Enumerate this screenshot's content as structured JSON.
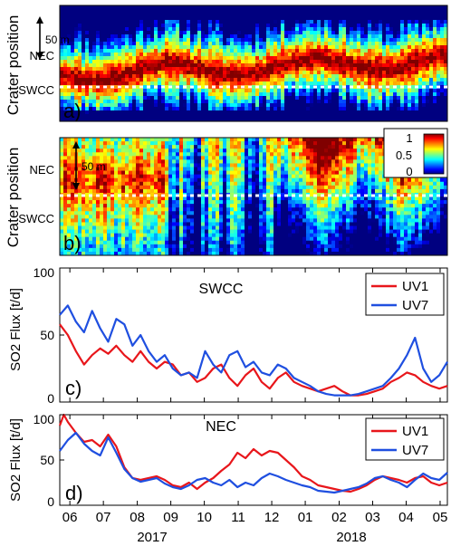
{
  "chart_data": [
    {
      "panel": "a)",
      "type": "heatmap",
      "ylabel": "Crater position",
      "ytick_labels": [
        "NEC",
        "SWCC"
      ],
      "scale_annotation": "50 m",
      "colorbar": {
        "ticks": [
          "1",
          "0.5",
          "0"
        ],
        "range": [
          0,
          1
        ]
      }
    },
    {
      "panel": "b)",
      "type": "heatmap",
      "ylabel": "Crater position",
      "ytick_labels": [
        "NEC",
        "SWCC"
      ],
      "scale_annotation": "50 m"
    },
    {
      "panel": "c)",
      "type": "line",
      "title": "SWCC",
      "ylabel": "SO2 Flux [t/d]",
      "ylim": [
        0,
        100
      ],
      "yticks": [
        "0",
        "50",
        "100"
      ],
      "legend": "top-right",
      "series": [
        {
          "name": "UV1",
          "color": "#e8161b",
          "values": [
            [
              0,
              58
            ],
            [
              2,
              50
            ],
            [
              4,
              38
            ],
            [
              6,
              28
            ],
            [
              8,
              35
            ],
            [
              10,
              40
            ],
            [
              12,
              36
            ],
            [
              14,
              42
            ],
            [
              16,
              35
            ],
            [
              18,
              30
            ],
            [
              20,
              38
            ],
            [
              22,
              30
            ],
            [
              24,
              25
            ],
            [
              26,
              30
            ],
            [
              28,
              28
            ],
            [
              30,
              20
            ],
            [
              32,
              22
            ],
            [
              34,
              15
            ],
            [
              36,
              18
            ],
            [
              38,
              25
            ],
            [
              40,
              28
            ],
            [
              42,
              18
            ],
            [
              44,
              12
            ],
            [
              46,
              20
            ],
            [
              48,
              25
            ],
            [
              50,
              15
            ],
            [
              52,
              10
            ],
            [
              54,
              18
            ],
            [
              56,
              22
            ],
            [
              58,
              15
            ],
            [
              60,
              12
            ],
            [
              62,
              10
            ],
            [
              64,
              8
            ],
            [
              66,
              10
            ],
            [
              68,
              12
            ],
            [
              70,
              8
            ],
            [
              72,
              5
            ],
            [
              74,
              5
            ],
            [
              76,
              6
            ],
            [
              78,
              8
            ],
            [
              80,
              10
            ],
            [
              82,
              15
            ],
            [
              84,
              18
            ],
            [
              86,
              22
            ],
            [
              88,
              20
            ],
            [
              90,
              15
            ],
            [
              92,
              12
            ],
            [
              94,
              10
            ],
            [
              96,
              12
            ]
          ]
        },
        {
          "name": "UV7",
          "color": "#1f4fe0",
          "values": [
            [
              0,
              65
            ],
            [
              2,
              72
            ],
            [
              4,
              60
            ],
            [
              6,
              52
            ],
            [
              8,
              68
            ],
            [
              10,
              55
            ],
            [
              12,
              45
            ],
            [
              14,
              62
            ],
            [
              16,
              58
            ],
            [
              18,
              42
            ],
            [
              20,
              50
            ],
            [
              22,
              38
            ],
            [
              24,
              30
            ],
            [
              26,
              35
            ],
            [
              28,
              25
            ],
            [
              30,
              20
            ],
            [
              32,
              22
            ],
            [
              34,
              18
            ],
            [
              36,
              38
            ],
            [
              38,
              28
            ],
            [
              40,
              22
            ],
            [
              42,
              35
            ],
            [
              44,
              38
            ],
            [
              46,
              26
            ],
            [
              48,
              30
            ],
            [
              50,
              22
            ],
            [
              52,
              20
            ],
            [
              54,
              28
            ],
            [
              56,
              25
            ],
            [
              58,
              18
            ],
            [
              60,
              15
            ],
            [
              62,
              12
            ],
            [
              64,
              8
            ],
            [
              66,
              6
            ],
            [
              68,
              5
            ],
            [
              70,
              5
            ],
            [
              72,
              5
            ],
            [
              74,
              6
            ],
            [
              76,
              8
            ],
            [
              78,
              10
            ],
            [
              80,
              12
            ],
            [
              82,
              18
            ],
            [
              84,
              25
            ],
            [
              86,
              35
            ],
            [
              88,
              48
            ],
            [
              90,
              25
            ],
            [
              92,
              15
            ],
            [
              94,
              20
            ],
            [
              96,
              30
            ]
          ]
        }
      ]
    },
    {
      "panel": "d)",
      "type": "line",
      "title": "NEC",
      "ylabel": "SO2 Flux [t/d]",
      "ylim": [
        0,
        100
      ],
      "yticks": [
        "0",
        "50",
        "100"
      ],
      "legend": "top-right",
      "xtick_labels": [
        "06",
        "07",
        "08",
        "09",
        "10",
        "11",
        "12",
        "01",
        "02",
        "03",
        "04",
        "05"
      ],
      "year_labels": [
        "2017",
        "2018"
      ],
      "series": [
        {
          "name": "UV1",
          "color": "#e8161b",
          "values": [
            [
              0,
              88
            ],
            [
              1,
              100
            ],
            [
              2,
              92
            ],
            [
              4,
              80
            ],
            [
              6,
              70
            ],
            [
              8,
              72
            ],
            [
              10,
              65
            ],
            [
              12,
              78
            ],
            [
              14,
              65
            ],
            [
              16,
              42
            ],
            [
              18,
              30
            ],
            [
              20,
              28
            ],
            [
              22,
              30
            ],
            [
              24,
              32
            ],
            [
              26,
              28
            ],
            [
              28,
              22
            ],
            [
              30,
              20
            ],
            [
              32,
              25
            ],
            [
              34,
              18
            ],
            [
              36,
              25
            ],
            [
              38,
              30
            ],
            [
              40,
              38
            ],
            [
              42,
              45
            ],
            [
              44,
              58
            ],
            [
              46,
              52
            ],
            [
              48,
              62
            ],
            [
              50,
              55
            ],
            [
              52,
              60
            ],
            [
              54,
              58
            ],
            [
              56,
              50
            ],
            [
              58,
              42
            ],
            [
              60,
              32
            ],
            [
              62,
              28
            ],
            [
              64,
              22
            ],
            [
              66,
              20
            ],
            [
              68,
              18
            ],
            [
              70,
              16
            ],
            [
              72,
              15
            ],
            [
              74,
              18
            ],
            [
              76,
              22
            ],
            [
              78,
              28
            ],
            [
              80,
              32
            ],
            [
              82,
              30
            ],
            [
              84,
              28
            ],
            [
              86,
              25
            ],
            [
              88,
              30
            ],
            [
              90,
              32
            ],
            [
              92,
              25
            ],
            [
              94,
              22
            ],
            [
              96,
              25
            ]
          ]
        },
        {
          "name": "UV7",
          "color": "#1f4fe0",
          "values": [
            [
              0,
              60
            ],
            [
              2,
              72
            ],
            [
              4,
              80
            ],
            [
              6,
              68
            ],
            [
              8,
              60
            ],
            [
              10,
              55
            ],
            [
              12,
              75
            ],
            [
              14,
              58
            ],
            [
              16,
              40
            ],
            [
              18,
              30
            ],
            [
              20,
              26
            ],
            [
              22,
              28
            ],
            [
              24,
              30
            ],
            [
              26,
              24
            ],
            [
              28,
              20
            ],
            [
              30,
              18
            ],
            [
              32,
              22
            ],
            [
              34,
              28
            ],
            [
              36,
              30
            ],
            [
              38,
              25
            ],
            [
              40,
              22
            ],
            [
              42,
              28
            ],
            [
              44,
              20
            ],
            [
              46,
              25
            ],
            [
              48,
              22
            ],
            [
              50,
              30
            ],
            [
              52,
              35
            ],
            [
              54,
              32
            ],
            [
              56,
              28
            ],
            [
              58,
              25
            ],
            [
              60,
              22
            ],
            [
              62,
              20
            ],
            [
              64,
              16
            ],
            [
              66,
              15
            ],
            [
              68,
              14
            ],
            [
              70,
              16
            ],
            [
              72,
              18
            ],
            [
              74,
              20
            ],
            [
              76,
              24
            ],
            [
              78,
              30
            ],
            [
              80,
              32
            ],
            [
              82,
              28
            ],
            [
              84,
              25
            ],
            [
              86,
              20
            ],
            [
              88,
              28
            ],
            [
              90,
              35
            ],
            [
              92,
              30
            ],
            [
              94,
              28
            ],
            [
              96,
              36
            ]
          ]
        }
      ]
    }
  ]
}
